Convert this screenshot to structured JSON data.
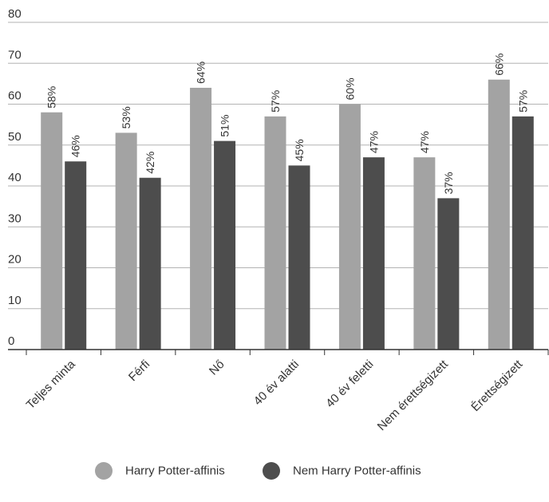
{
  "chart_data": {
    "type": "bar",
    "categories": [
      "Teljes minta",
      "Férfi",
      "Nő",
      "40 év alatti",
      "40 év feletti",
      "Nem érettségizett",
      "Érettségizett"
    ],
    "series": [
      {
        "name": "Harry Potter-affinis",
        "values": [
          58,
          53,
          64,
          57,
          60,
          47,
          66
        ],
        "labels": [
          "58%",
          "53%",
          "64%",
          "57%",
          "60%",
          "47%",
          "66%"
        ],
        "color": "#a3a3a3"
      },
      {
        "name": "Nem Harry Potter-affinis",
        "values": [
          46,
          42,
          51,
          45,
          47,
          37,
          57
        ],
        "labels": [
          "46%",
          "42%",
          "51%",
          "45%",
          "47%",
          "37%",
          "57%"
        ],
        "color": "#4d4d4d"
      }
    ],
    "y_ticks": [
      0,
      10,
      20,
      30,
      40,
      50,
      60,
      70,
      80
    ],
    "ylim": [
      0,
      80
    ],
    "grid": true,
    "legend_position": "bottom"
  }
}
